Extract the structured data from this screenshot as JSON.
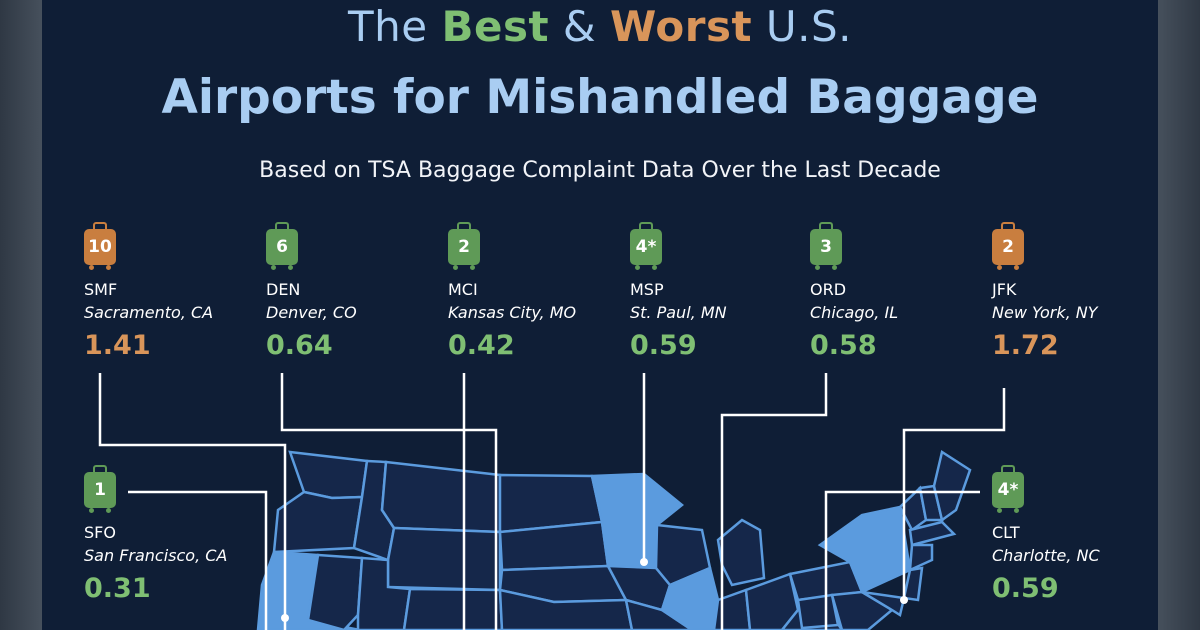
{
  "title": {
    "prefix": "The",
    "best": "Best",
    "amp": "&",
    "worst": "Worst",
    "suffix": "U.S.",
    "line2": "Airports for Mishandled Baggage"
  },
  "subtitle": "Based on TSA Baggage Complaint Data Over the Last Decade",
  "colors": {
    "background": "#0f1e36",
    "best": "#7fbf73",
    "worst": "#d9955a",
    "title": "#a9cdf2",
    "map_highlight": "#5b9bde",
    "map_base": "#15274a",
    "map_border": "#5b9bde"
  },
  "chart_data": {
    "type": "table",
    "columns": [
      "rank",
      "code",
      "city",
      "value",
      "group"
    ],
    "rows": [
      {
        "rank": "10",
        "code": "SMF",
        "city": "Sacramento, CA",
        "value": "1.41",
        "group": "worst"
      },
      {
        "rank": "6",
        "code": "DEN",
        "city": "Denver, CO",
        "value": "0.64",
        "group": "best"
      },
      {
        "rank": "2",
        "code": "MCI",
        "city": "Kansas City, MO",
        "value": "0.42",
        "group": "best"
      },
      {
        "rank": "4*",
        "code": "MSP",
        "city": "St. Paul, MN",
        "value": "0.59",
        "group": "best"
      },
      {
        "rank": "3",
        "code": "ORD",
        "city": "Chicago, IL",
        "value": "0.58",
        "group": "best"
      },
      {
        "rank": "2",
        "code": "JFK",
        "city": "New York, NY",
        "value": "1.72",
        "group": "worst"
      },
      {
        "rank": "1",
        "code": "SFO",
        "city": "San Francisco, CA",
        "value": "0.31",
        "group": "best"
      },
      {
        "rank": "4*",
        "code": "CLT",
        "city": "Charlotte, NC",
        "value": "0.59",
        "group": "best"
      }
    ]
  },
  "highlighted_states": [
    "CA",
    "MN",
    "IL",
    "NY"
  ]
}
